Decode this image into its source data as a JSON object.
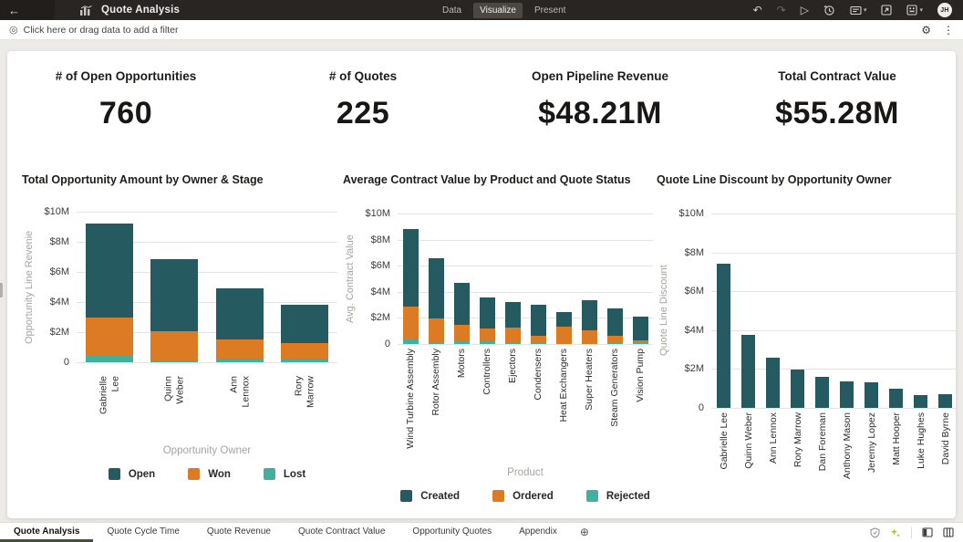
{
  "topbar": {
    "title": "Quote Analysis",
    "nav_tabs": [
      {
        "label": "Data",
        "active": false
      },
      {
        "label": "Visualize",
        "active": true
      },
      {
        "label": "Present",
        "active": false
      }
    ],
    "avatar_initials": "JH"
  },
  "icons": {
    "back": "←",
    "undo": "↶",
    "redo": "↷",
    "play": "▷",
    "caret": "▾",
    "filter_target": "◎",
    "gear": "⚙",
    "kebab": "⋮",
    "add_page": "⊕"
  },
  "filterbar": {
    "label": "Click here or drag data to add a filter"
  },
  "kpis": [
    {
      "label": "# of Open Opportunities",
      "value": "760"
    },
    {
      "label": "# of Quotes",
      "value": "225"
    },
    {
      "label": "Open Pipeline Revenue",
      "value": "$48.21M"
    },
    {
      "label": "Total Contract Value",
      "value": "$55.28M"
    }
  ],
  "colors": {
    "teal_dark": "#265a61",
    "orange": "#dd7b25",
    "teal_light": "#43af9f",
    "active_tab_underline": "#41542f"
  },
  "chart_data": [
    {
      "type": "bar",
      "stacked": true,
      "title": "Total Opportunity Amount by Owner & Stage",
      "ylabel": "Opportunity Line Revenie",
      "xlabel": "Opportunity Owner",
      "units": "millions USD",
      "ymax": 10,
      "yticks": [
        {
          "v": 10,
          "label": "$10M"
        },
        {
          "v": 8,
          "label": "$8M"
        },
        {
          "v": 6,
          "label": "$6M"
        },
        {
          "v": 4,
          "label": "$4M"
        },
        {
          "v": 2,
          "label": "$2M"
        },
        {
          "v": 0,
          "label": "0"
        }
      ],
      "categories": [
        "Gabrielle Lee",
        "Quinn Weber",
        "Ann Lennox",
        "Rory Marrow"
      ],
      "label_wrap": true,
      "series": [
        {
          "name": "Open",
          "color": "#265a61",
          "values": [
            6.2,
            4.8,
            3.4,
            2.5
          ]
        },
        {
          "name": "Won",
          "color": "#dd7b25",
          "values": [
            2.5,
            1.9,
            1.25,
            1.05
          ]
        },
        {
          "name": "Lost",
          "color": "#43af9f",
          "values": [
            0.5,
            0.15,
            0.25,
            0.25
          ]
        }
      ],
      "legend": true
    },
    {
      "type": "bar",
      "stacked": true,
      "title": "Average Contract Value by Product and Quote Status",
      "ylabel": "Avg. Contract Value",
      "xlabel": "Product",
      "units": "millions USD",
      "ymax": 10,
      "yticks": [
        {
          "v": 10,
          "label": "$10M"
        },
        {
          "v": 8,
          "label": "$8M"
        },
        {
          "v": 6,
          "label": "$6M"
        },
        {
          "v": 4,
          "label": "$4M"
        },
        {
          "v": 2,
          "label": "$2M"
        },
        {
          "v": 0,
          "label": "0"
        }
      ],
      "categories": [
        "Wind Turbine Assembly",
        "Rotor Assembly",
        "Motors",
        "Controllers",
        "Ejectors",
        "Condensers",
        "Heat Exchangers",
        "Super Heaters",
        "Steam Generators",
        "Vision Pump"
      ],
      "label_wrap": false,
      "series": [
        {
          "name": "Created",
          "color": "#265a61",
          "values": [
            5.95,
            4.65,
            3.25,
            2.35,
            1.95,
            2.35,
            1.15,
            2.3,
            2.1,
            1.85
          ]
        },
        {
          "name": "Ordered",
          "color": "#dd7b25",
          "values": [
            2.4,
            1.8,
            1.25,
            1.0,
            1.15,
            0.6,
            1.3,
            1.05,
            0.55,
            0.2
          ]
        },
        {
          "name": "Rejected",
          "color": "#43af9f",
          "values": [
            0.45,
            0.15,
            0.2,
            0.2,
            0.1,
            0.05,
            0,
            0,
            0.05,
            0.05
          ]
        }
      ],
      "legend": true
    },
    {
      "type": "bar",
      "stacked": false,
      "title": "Quote Line Discount by Opportunity Owner",
      "ylabel": "Quote Line Discount",
      "xlabel": "",
      "units": "millions USD",
      "ymax": 10,
      "yticks": [
        {
          "v": 10,
          "label": "$10M"
        },
        {
          "v": 8,
          "label": "$8M"
        },
        {
          "v": 6,
          "label": "$6M"
        },
        {
          "v": 4,
          "label": "$4M"
        },
        {
          "v": 2,
          "label": "$2M"
        },
        {
          "v": 0,
          "label": "0"
        }
      ],
      "categories": [
        "Gabrielle Lee",
        "Quinn Weber",
        "Ann Lennox",
        "Rory Marrow",
        "Dan Foreman",
        "Anthony Mason",
        "Jeremy Lopez",
        "Matt Hooper",
        "Luke Hughes",
        "David Byrne"
      ],
      "label_wrap": false,
      "bar_color": "#265a61",
      "values": [
        7.4,
        3.75,
        2.6,
        1.95,
        1.6,
        1.35,
        1.3,
        1.0,
        0.65,
        0.7
      ],
      "legend": false
    }
  ],
  "bottombar": {
    "tabs": [
      {
        "label": "Quote Analysis",
        "active": true
      },
      {
        "label": "Quote Cycle Time",
        "active": false
      },
      {
        "label": "Quote Revenue",
        "active": false
      },
      {
        "label": "Quote Contract Value",
        "active": false
      },
      {
        "label": "Opportunity Quotes",
        "active": false
      },
      {
        "label": "Appendix",
        "active": false
      }
    ]
  }
}
